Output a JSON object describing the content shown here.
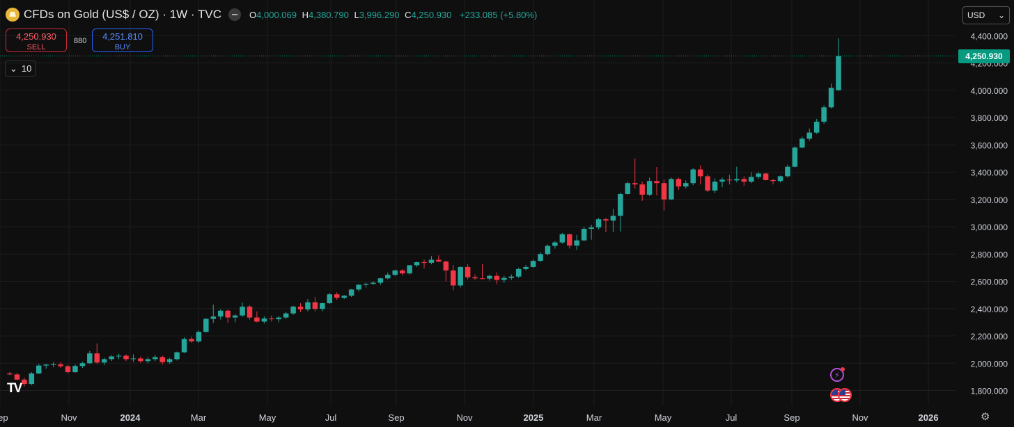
{
  "header": {
    "symbol_title": "CFDs on Gold (US$ / OZ) · 1W · TVC",
    "o_label": "O",
    "o_value": "4,000.069",
    "h_label": "H",
    "h_value": "4,380.790",
    "l_label": "L",
    "l_value": "3,996.290",
    "c_label": "C",
    "c_value": "4,250.930",
    "change": "+233.085 (+5.80%)"
  },
  "trade": {
    "sell_price": "4,250.930",
    "sell_label": "SELL",
    "spread": "880",
    "buy_price": "4,251.810",
    "buy_label": "BUY"
  },
  "collapse_count": "10",
  "currency": "USD",
  "last_price_label": "4,250.930",
  "logo_text": "TV",
  "colors": {
    "up": "#26a69a",
    "down": "#f23645",
    "background": "#0f0f0f",
    "grid": "#1e1e1e",
    "last_price": "#089981"
  },
  "chart_data": {
    "type": "candlestick",
    "timeframe": "1W",
    "y_range": [
      1700,
      4430
    ],
    "y_ticks": [
      1800,
      2000,
      2200,
      2400,
      2600,
      2800,
      3000,
      3200,
      3400,
      3600,
      3800,
      4000,
      4200,
      4400
    ],
    "y_tick_labels": [
      "1,800.000",
      "2,000.000",
      "2,200.000",
      "2,400.000",
      "2,600.000",
      "2,800.000",
      "3,000.000",
      "3,200.000",
      "3,400.000",
      "3,600.000",
      "3,800.000",
      "4,000.000",
      "4,200.000",
      "4,400.000"
    ],
    "x_tick_labels": [
      "Sep",
      "Nov",
      "2024",
      "Mar",
      "May",
      "Jul",
      "Sep",
      "Nov",
      "2025",
      "Mar",
      "May",
      "Jul",
      "Sep",
      "Nov",
      "2026"
    ],
    "last_price": 4250.93,
    "grid": true,
    "ohlc": [
      [
        1925,
        1935,
        1913,
        1918
      ],
      [
        1918,
        1928,
        1875,
        1880
      ],
      [
        1880,
        1895,
        1830,
        1848
      ],
      [
        1848,
        1935,
        1840,
        1925
      ],
      [
        1925,
        1995,
        1920,
        1983
      ],
      [
        1983,
        1995,
        1960,
        1990
      ],
      [
        1990,
        2008,
        1970,
        1992
      ],
      [
        1992,
        2010,
        1965,
        1978
      ],
      [
        1978,
        1988,
        1925,
        1935
      ],
      [
        1935,
        1990,
        1930,
        1980
      ],
      [
        1980,
        2010,
        1965,
        2000
      ],
      [
        2000,
        2090,
        1995,
        2072
      ],
      [
        2072,
        2145,
        1995,
        2005
      ],
      [
        2005,
        2040,
        1985,
        2030
      ],
      [
        2030,
        2060,
        2015,
        2050
      ],
      [
        2050,
        2070,
        2030,
        2055
      ],
      [
        2055,
        2065,
        2015,
        2030
      ],
      [
        2030,
        2065,
        2010,
        2035
      ],
      [
        2035,
        2050,
        2002,
        2015
      ],
      [
        2015,
        2045,
        2000,
        2030
      ],
      [
        2030,
        2060,
        2015,
        2045
      ],
      [
        2045,
        2055,
        1990,
        2008
      ],
      [
        2008,
        2040,
        1995,
        2030
      ],
      [
        2030,
        2085,
        2020,
        2080
      ],
      [
        2080,
        2190,
        2075,
        2178
      ],
      [
        2178,
        2195,
        2150,
        2160
      ],
      [
        2160,
        2240,
        2150,
        2230
      ],
      [
        2230,
        2330,
        2225,
        2325
      ],
      [
        2325,
        2430,
        2295,
        2342
      ],
      [
        2342,
        2395,
        2320,
        2385
      ],
      [
        2385,
        2395,
        2295,
        2335
      ],
      [
        2335,
        2360,
        2300,
        2350
      ],
      [
        2350,
        2445,
        2340,
        2415
      ],
      [
        2415,
        2425,
        2320,
        2335
      ],
      [
        2335,
        2380,
        2300,
        2305
      ],
      [
        2305,
        2345,
        2290,
        2328
      ],
      [
        2328,
        2350,
        2305,
        2322
      ],
      [
        2322,
        2345,
        2300,
        2335
      ],
      [
        2335,
        2375,
        2325,
        2365
      ],
      [
        2365,
        2420,
        2355,
        2415
      ],
      [
        2415,
        2440,
        2375,
        2395
      ],
      [
        2395,
        2470,
        2380,
        2447
      ],
      [
        2447,
        2485,
        2380,
        2398
      ],
      [
        2398,
        2445,
        2380,
        2440
      ],
      [
        2440,
        2515,
        2435,
        2505
      ],
      [
        2505,
        2520,
        2465,
        2480
      ],
      [
        2480,
        2500,
        2470,
        2495
      ],
      [
        2495,
        2545,
        2485,
        2540
      ],
      [
        2540,
        2580,
        2525,
        2575
      ],
      [
        2575,
        2590,
        2555,
        2582
      ],
      [
        2582,
        2600,
        2575,
        2590
      ],
      [
        2590,
        2625,
        2575,
        2622
      ],
      [
        2622,
        2665,
        2615,
        2648
      ],
      [
        2648,
        2685,
        2640,
        2680
      ],
      [
        2680,
        2690,
        2645,
        2658
      ],
      [
        2658,
        2720,
        2650,
        2718
      ],
      [
        2718,
        2745,
        2705,
        2740
      ],
      [
        2740,
        2758,
        2695,
        2736
      ],
      [
        2736,
        2785,
        2725,
        2758
      ],
      [
        2758,
        2790,
        2740,
        2745
      ],
      [
        2745,
        2752,
        2600,
        2680
      ],
      [
        2680,
        2720,
        2535,
        2570
      ],
      [
        2570,
        2710,
        2555,
        2705
      ],
      [
        2705,
        2725,
        2615,
        2630
      ],
      [
        2630,
        2650,
        2610,
        2622
      ],
      [
        2622,
        2725,
        2615,
        2620
      ],
      [
        2620,
        2650,
        2605,
        2640
      ],
      [
        2640,
        2665,
        2580,
        2610
      ],
      [
        2610,
        2640,
        2590,
        2625
      ],
      [
        2625,
        2650,
        2610,
        2635
      ],
      [
        2635,
        2700,
        2625,
        2690
      ],
      [
        2690,
        2720,
        2680,
        2705
      ],
      [
        2705,
        2760,
        2700,
        2750
      ],
      [
        2750,
        2815,
        2740,
        2800
      ],
      [
        2800,
        2870,
        2790,
        2860
      ],
      [
        2860,
        2895,
        2840,
        2885
      ],
      [
        2885,
        2955,
        2875,
        2945
      ],
      [
        2945,
        2950,
        2840,
        2862
      ],
      [
        2862,
        2940,
        2830,
        2900
      ],
      [
        2900,
        3000,
        2895,
        2985
      ],
      [
        2985,
        3015,
        2905,
        2995
      ],
      [
        2995,
        3065,
        2980,
        3055
      ],
      [
        3055,
        3065,
        2960,
        3045
      ],
      [
        3045,
        3130,
        2960,
        3080
      ],
      [
        3080,
        3250,
        2965,
        3240
      ],
      [
        3240,
        3330,
        3235,
        3320
      ],
      [
        3320,
        3500,
        3280,
        3310
      ],
      [
        3310,
        3330,
        3190,
        3235
      ],
      [
        3235,
        3360,
        3225,
        3335
      ],
      [
        3335,
        3438,
        3230,
        3320
      ],
      [
        3320,
        3345,
        3120,
        3200
      ],
      [
        3200,
        3360,
        3195,
        3350
      ],
      [
        3350,
        3360,
        3270,
        3295
      ],
      [
        3295,
        3340,
        3280,
        3320
      ],
      [
        3320,
        3430,
        3305,
        3420
      ],
      [
        3420,
        3450,
        3310,
        3370
      ],
      [
        3370,
        3385,
        3255,
        3265
      ],
      [
        3265,
        3355,
        3245,
        3330
      ],
      [
        3330,
        3360,
        3290,
        3345
      ],
      [
        3345,
        3380,
        3310,
        3340
      ],
      [
        3340,
        3440,
        3325,
        3350
      ],
      [
        3350,
        3370,
        3300,
        3330
      ],
      [
        3330,
        3400,
        3320,
        3365
      ],
      [
        3365,
        3400,
        3350,
        3390
      ],
      [
        3390,
        3395,
        3340,
        3342
      ],
      [
        3342,
        3350,
        3310,
        3335
      ],
      [
        3335,
        3375,
        3325,
        3370
      ],
      [
        3370,
        3455,
        3360,
        3440
      ],
      [
        3440,
        3590,
        3435,
        3580
      ],
      [
        3580,
        3660,
        3575,
        3645
      ],
      [
        3645,
        3720,
        3630,
        3690
      ],
      [
        3690,
        3790,
        3680,
        3770
      ],
      [
        3770,
        3890,
        3755,
        3875
      ],
      [
        3875,
        4050,
        3865,
        4018
      ],
      [
        4000.069,
        4380.79,
        3996.29,
        4250.93
      ]
    ]
  }
}
